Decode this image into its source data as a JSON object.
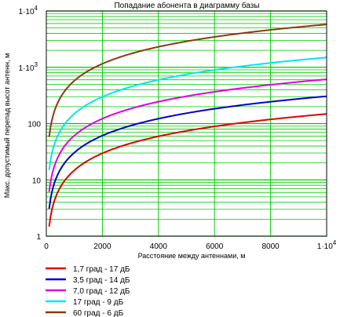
{
  "chart_data": {
    "type": "line",
    "title": "Попадание абонента в диаграмму базы",
    "xlabel": "Расстояние между антеннами, м",
    "ylabel": "Макс. допустимый перепад высот антенн, м",
    "x_ticks": [
      {
        "value": 0,
        "label": "0"
      },
      {
        "value": 2000,
        "label": "2000"
      },
      {
        "value": 4000,
        "label": "4000"
      },
      {
        "value": 6000,
        "label": "6000"
      },
      {
        "value": 8000,
        "label": "8000"
      },
      {
        "value": 10000,
        "label": "1·10",
        "exp": "4"
      }
    ],
    "y_ticks": [
      {
        "value": 1,
        "label": "1"
      },
      {
        "value": 10,
        "label": "10"
      },
      {
        "value": 100,
        "label": "100"
      },
      {
        "value": 1000,
        "label": "1·10",
        "exp": "3"
      },
      {
        "value": 10000,
        "label": "1·10",
        "exp": "4"
      }
    ],
    "xlim": [
      0,
      10000
    ],
    "ylim": [
      1,
      10000
    ],
    "y_scale": "log",
    "grid": true,
    "grid_color": "#00cc00",
    "legend_position": "bottom-left",
    "series": [
      {
        "name": "1,7 град - 17 дБ",
        "color": "#e00000",
        "angle_deg": 1.7
      },
      {
        "name": "3,5 град - 14 дБ",
        "color": "#0000c8",
        "angle_deg": 3.5
      },
      {
        "name": "7,0 град - 12 дБ",
        "color": "#e000e0",
        "angle_deg": 7.0
      },
      {
        "name": "17 град - 9 дБ",
        "color": "#00e8e8",
        "angle_deg": 17.0
      },
      {
        "name": "60 град - 6 дБ",
        "color": "#8b3a10",
        "angle_deg": 60.0
      }
    ]
  }
}
